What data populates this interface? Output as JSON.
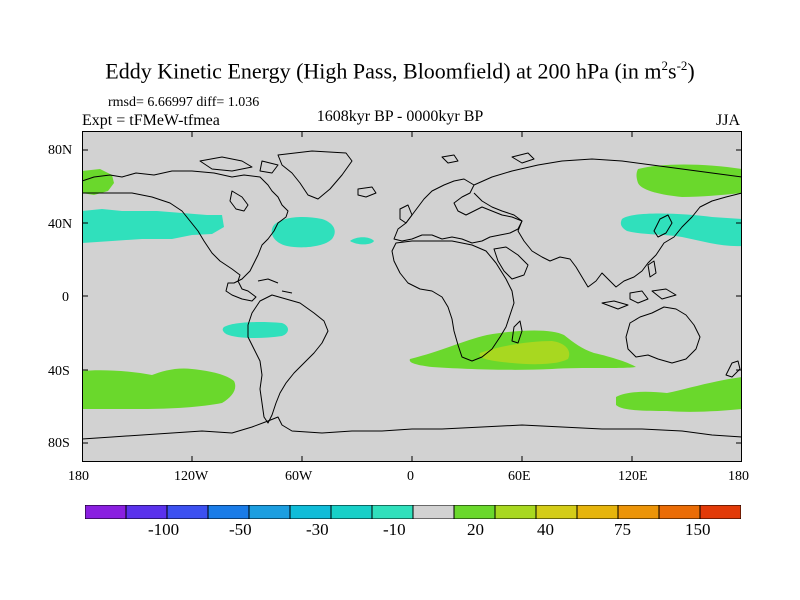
{
  "title": {
    "prefix": "Eddy Kinetic Energy (High Pass, Bloomfield) at 200 hPa (in m",
    "sup1": "2",
    "mid": "s",
    "sup2": "-2",
    "suffix": ")"
  },
  "stats": {
    "rmsd": "rmsd= 6.66997 diff= 1.036"
  },
  "experiment": "Expt = tFMeW-tfmea",
  "period": "1608kyr BP - 0000kyr BP",
  "season": "JJA",
  "y_axis_labels": [
    "80N",
    "40N",
    "0",
    "40S",
    "80S"
  ],
  "x_axis_labels": [
    "180",
    "120W",
    "60W",
    "0",
    "60E",
    "120E",
    "180"
  ],
  "colorbar": {
    "labels": [
      "-100",
      "-50",
      "-30",
      "-10",
      "20",
      "40",
      "75",
      "150"
    ],
    "colors": [
      "#8a1fe0",
      "#5a32ec",
      "#3c50f0",
      "#1a7ce8",
      "#1c9ee0",
      "#10bcd8",
      "#18d0c8",
      "#30e0bc",
      "#d2d2d2",
      "#6ad82c",
      "#a8d820",
      "#d4cc18",
      "#e6b40c",
      "#ec9408",
      "#ea6c06",
      "#e23a08"
    ]
  },
  "colors": {
    "land_background": "#d2d2d2",
    "coast": "#000000",
    "teal": "#30e0bc",
    "green": "#6ad82c",
    "yellow_green": "#a8d820"
  }
}
